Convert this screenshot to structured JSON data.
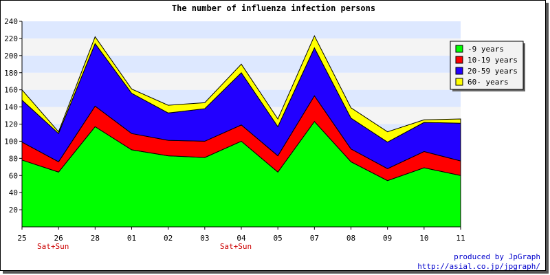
{
  "chart_data": {
    "type": "area",
    "stacked": true,
    "title": "The number of influenza infection persons",
    "xlabel": "",
    "ylabel": "",
    "ylim": [
      0,
      240
    ],
    "yticks": [
      20,
      40,
      60,
      80,
      100,
      120,
      140,
      160,
      180,
      200,
      220,
      240
    ],
    "categories": [
      "25",
      "26",
      "28",
      "01",
      "02",
      "03",
      "04",
      "05",
      "07",
      "08",
      "09",
      "10",
      "11"
    ],
    "category_notes": [
      {
        "category": "26",
        "text": "Sat+Sun"
      },
      {
        "category": "04",
        "text": "Sat+Sun"
      }
    ],
    "series": [
      {
        "name": "-9 years",
        "color": "#00ff00",
        "values": [
          78,
          64,
          117,
          90,
          83,
          81,
          100,
          64,
          123,
          76,
          54,
          69,
          60
        ]
      },
      {
        "name": "10-19 years",
        "color": "#ff0000",
        "values": [
          21,
          12,
          24,
          19,
          18,
          19,
          19,
          19,
          30,
          15,
          14,
          19,
          17
        ]
      },
      {
        "name": "20-59 years",
        "color": "#2200ff",
        "values": [
          49,
          33,
          73,
          47,
          32,
          38,
          61,
          34,
          56,
          36,
          31,
          34,
          44
        ]
      },
      {
        "name": "60- years",
        "color": "#ffff00",
        "values": [
          12,
          2,
          8,
          5,
          9,
          7,
          10,
          9,
          14,
          12,
          12,
          3,
          5
        ]
      }
    ],
    "grid": true,
    "grid_band_colors": [
      "#f4f4f4",
      "#dde8ff"
    ],
    "legend_position": "top-right"
  },
  "credits": {
    "line1": "produced by JpGraph",
    "line2": "http://asial.co.jp/jpgraph/"
  }
}
